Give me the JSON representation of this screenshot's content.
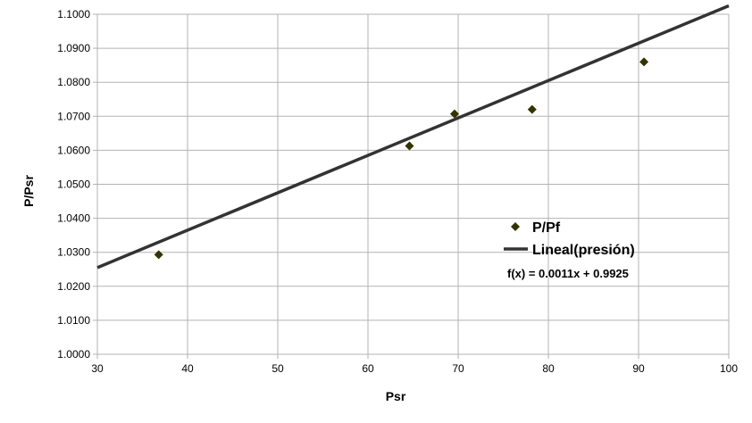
{
  "chart_data": {
    "type": "scatter",
    "title": "",
    "xlabel": "Psr",
    "ylabel": "P/Psr",
    "xlim": [
      30,
      100
    ],
    "ylim": [
      1.0,
      1.1
    ],
    "x_ticks": [
      30,
      40,
      50,
      60,
      70,
      80,
      90,
      100
    ],
    "y_ticks": [
      1.0,
      1.01,
      1.02,
      1.03,
      1.04,
      1.05,
      1.06,
      1.07,
      1.08,
      1.09,
      1.1
    ],
    "grid": true,
    "legend_position": "right",
    "series": [
      {
        "name": "P/Pf",
        "marker": "diamond",
        "color": "#333300",
        "points": [
          {
            "x": 36.8,
            "y": 1.0293
          },
          {
            "x": 64.6,
            "y": 1.0613
          },
          {
            "x": 69.6,
            "y": 1.0707
          },
          {
            "x": 78.2,
            "y": 1.072
          },
          {
            "x": 90.6,
            "y": 1.086
          }
        ]
      },
      {
        "name": "Lineal(presión)",
        "type": "trendline",
        "color": "#333333",
        "slope": 0.0011,
        "intercept": 0.9925
      }
    ],
    "equation_label": "f(x) = 0.0011x + 0.9925"
  }
}
